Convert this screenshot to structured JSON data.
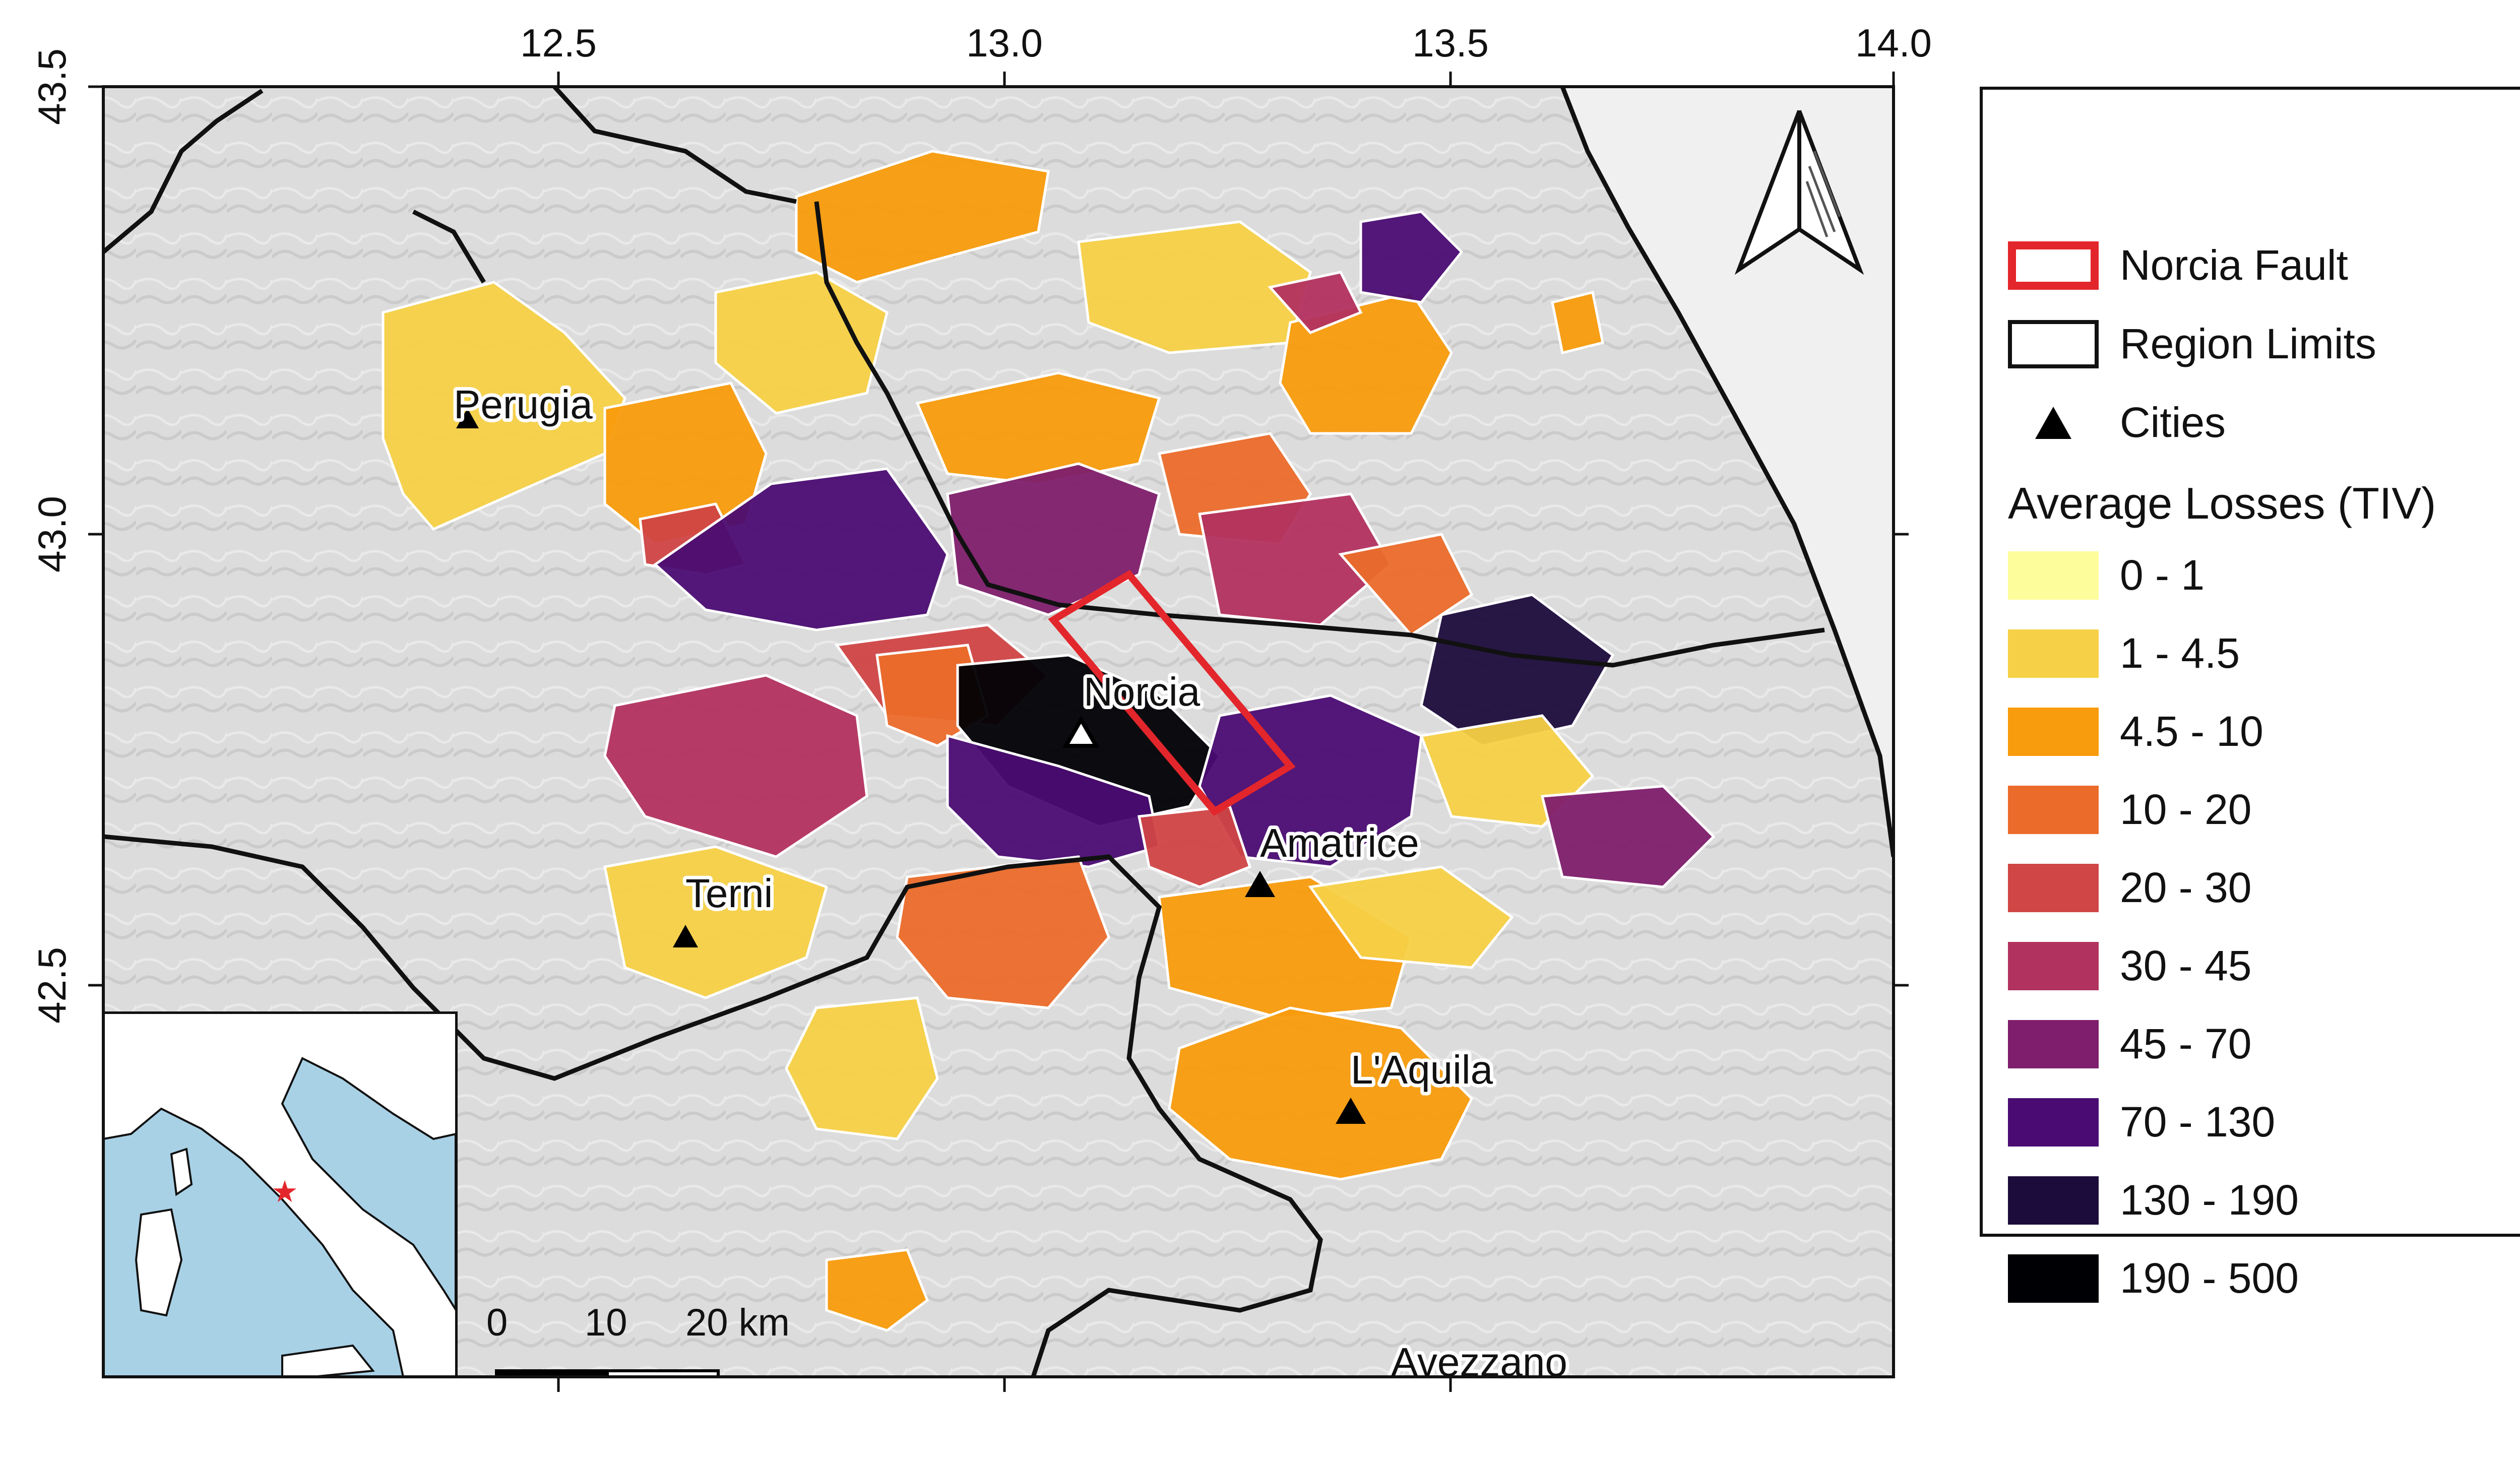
{
  "map": {
    "x_ticks": [
      "12.5",
      "13.0",
      "13.5",
      "14.0"
    ],
    "y_ticks": [
      "43.5",
      "43.0",
      "42.5"
    ],
    "north_arrow": "north-arrow-icon",
    "cities": [
      {
        "name": "Perugia"
      },
      {
        "name": "Terni"
      },
      {
        "name": "Norcia"
      },
      {
        "name": "Amatrice"
      },
      {
        "name": "L'Aquila"
      },
      {
        "name": "Avezzano"
      }
    ],
    "scale_bar": {
      "labels": [
        "0",
        "10",
        "20 km"
      ]
    },
    "inset": {
      "marker": "star-icon",
      "marker_color": "#e3262b",
      "sea_color": "#a8d1e6"
    }
  },
  "legend": {
    "fault_label": "Norcia Fault",
    "region_label": "Region Limits",
    "cities_label": "Cities",
    "title": "Average Losses (TIV)",
    "classes": [
      {
        "label": "0 - 1",
        "color": "#fdfd9b"
      },
      {
        "label": "1 - 4.5",
        "color": "#f6d046"
      },
      {
        "label": "4.5 - 10",
        "color": "#f89b0c"
      },
      {
        "label": "10 - 20",
        "color": "#eb6b2a"
      },
      {
        "label": "20 - 30",
        "color": "#d04545"
      },
      {
        "label": "30 - 45",
        "color": "#b2325f"
      },
      {
        "label": "45 - 70",
        "color": "#7e1e6c"
      },
      {
        "label": "70 - 130",
        "color": "#4a0c72"
      },
      {
        "label": "130 - 190",
        "color": "#1c0c3c"
      },
      {
        "label": "190 - 500",
        "color": "#000004"
      }
    ],
    "fault_color": "#e3262b"
  }
}
